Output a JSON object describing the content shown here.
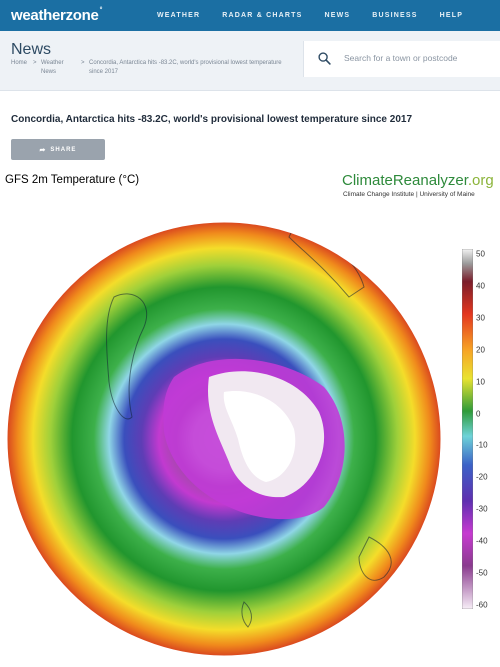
{
  "nav": {
    "logo": "weatherzone",
    "items": [
      "WEATHER",
      "RADAR & CHARTS",
      "NEWS",
      "BUSINESS",
      "HELP"
    ]
  },
  "subheader": {
    "title": "News",
    "breadcrumbs": [
      "Home",
      "Weather News",
      "Concordia, Antarctica hits -83.2C, world's provisional lowest temperature since 2017"
    ]
  },
  "search": {
    "placeholder": "Search for a town or postcode"
  },
  "article": {
    "headline": "Concordia, Antarctica hits -83.2C, world's provisional lowest temperature since 2017",
    "share_label": "SHARE"
  },
  "figure": {
    "title": "GFS 2m Temperature (°C)",
    "brand": "ClimateReanalyzer",
    "brand_suffix": ".org",
    "brand_sub": "Climate Change Institute | University of Maine",
    "colorbar_ticks": [
      "50",
      "40",
      "30",
      "20",
      "10",
      "0",
      "-10",
      "-20",
      "-30",
      "-40",
      "-50",
      "-60"
    ]
  },
  "colors": {
    "nav_bg": "#1b6fa3",
    "brand_green": "#2e8a3b"
  }
}
